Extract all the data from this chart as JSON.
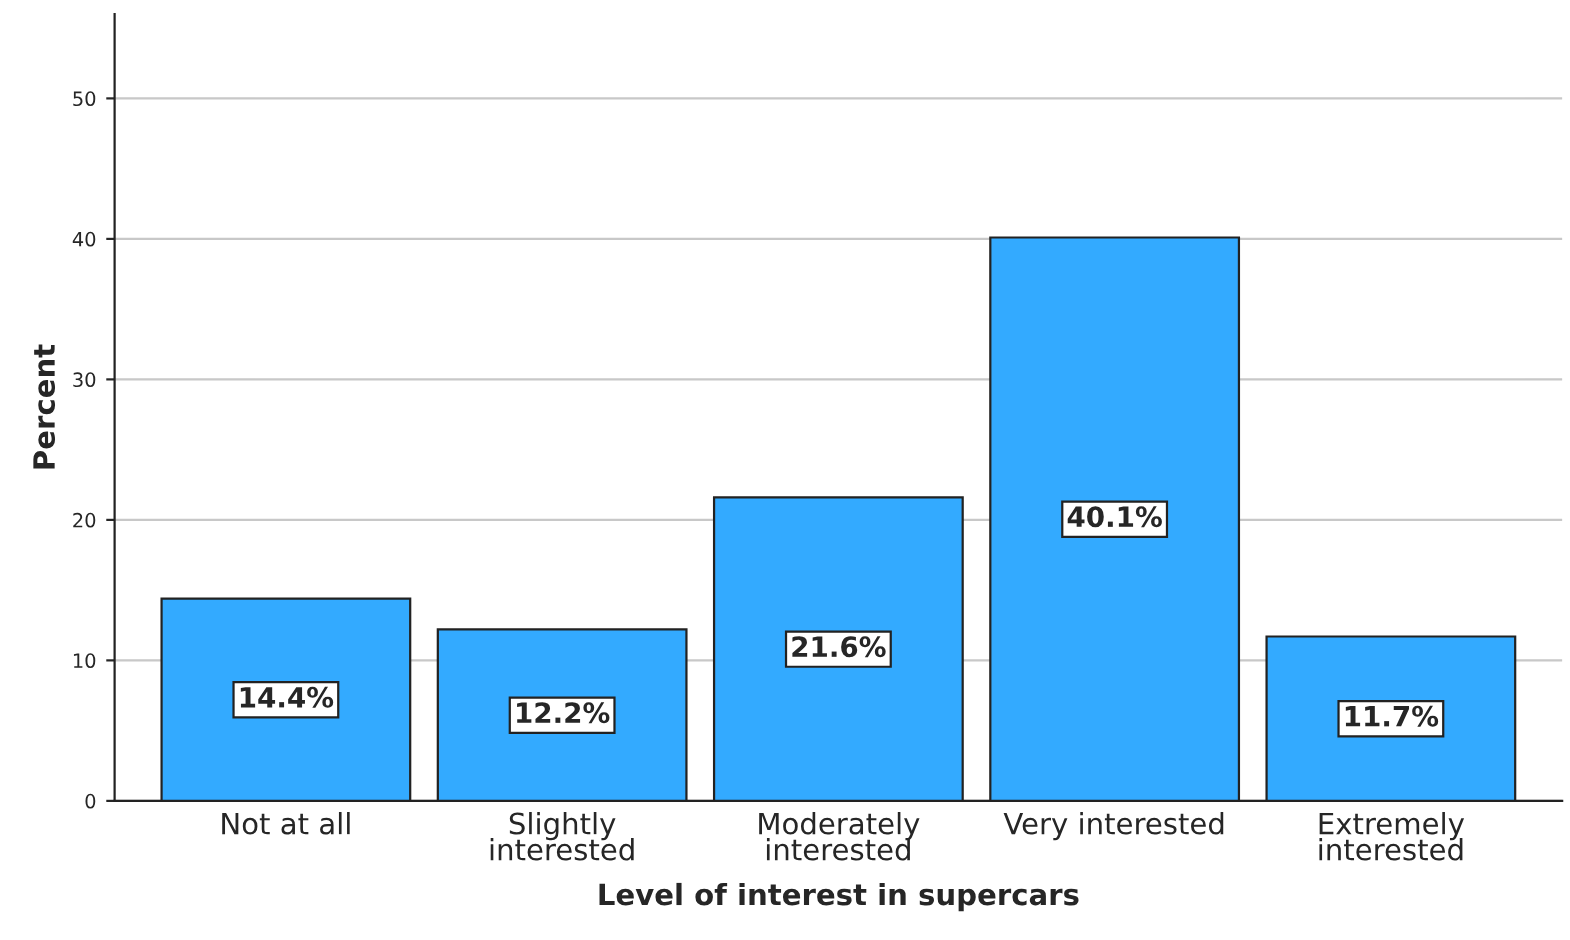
{
  "chart_data": {
    "type": "bar",
    "xlabel": "Level of interest in supercars",
    "ylabel": "Percent",
    "categories": [
      "Not at all",
      "Slightly\ninterested",
      "Moderately\ninterested",
      "Very interested",
      "Extremely\ninterested"
    ],
    "values": [
      14.4,
      12.2,
      21.6,
      40.1,
      11.7
    ],
    "value_labels": [
      "14.4%",
      "12.2%",
      "21.6%",
      "40.1%",
      "11.7%"
    ],
    "color": "#33aaff",
    "ylim": [
      0,
      56
    ],
    "yticks": [
      0,
      10,
      20,
      30,
      40,
      50
    ],
    "grid": "y"
  }
}
